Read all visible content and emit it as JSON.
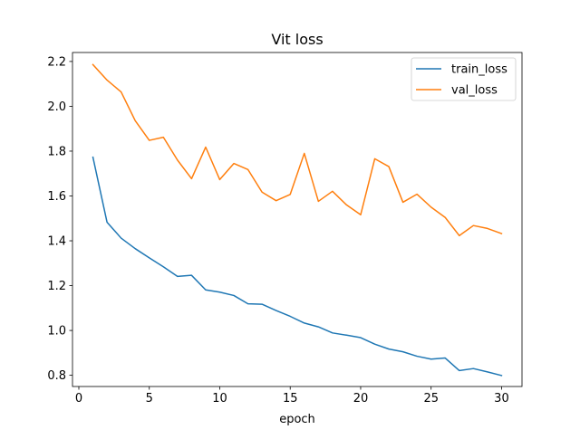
{
  "chart_data": {
    "type": "line",
    "title": "Vit loss",
    "xlabel": "epoch",
    "ylabel": "",
    "xlim": [
      -0.45,
      31.45
    ],
    "ylim": [
      0.75,
      2.24
    ],
    "x": [
      1,
      2,
      3,
      4,
      5,
      6,
      7,
      8,
      9,
      10,
      11,
      12,
      13,
      14,
      15,
      16,
      17,
      18,
      19,
      20,
      21,
      22,
      23,
      24,
      25,
      26,
      27,
      28,
      29,
      30
    ],
    "xticks": [
      0,
      5,
      10,
      15,
      20,
      25,
      30
    ],
    "yticks": [
      0.8,
      1.0,
      1.2,
      1.4,
      1.6,
      1.8,
      2.0,
      2.2
    ],
    "series": [
      {
        "name": "train_loss",
        "color": "#1f77b4",
        "values": [
          1.773,
          1.483,
          1.412,
          1.365,
          1.324,
          1.284,
          1.241,
          1.246,
          1.181,
          1.171,
          1.156,
          1.119,
          1.117,
          1.089,
          1.063,
          1.033,
          1.016,
          0.989,
          0.979,
          0.968,
          0.939,
          0.917,
          0.905,
          0.885,
          0.872,
          0.877,
          0.821,
          0.83,
          0.815,
          0.799
        ]
      },
      {
        "name": "val_loss",
        "color": "#ff7f0e",
        "values": [
          2.186,
          2.117,
          2.064,
          1.936,
          1.848,
          1.862,
          1.76,
          1.677,
          1.818,
          1.673,
          1.745,
          1.718,
          1.617,
          1.579,
          1.607,
          1.79,
          1.576,
          1.621,
          1.56,
          1.516,
          1.766,
          1.731,
          1.572,
          1.608,
          1.55,
          1.504,
          1.423,
          1.468,
          1.455,
          1.432
        ]
      }
    ],
    "grid": false,
    "legend_position": "top-right"
  }
}
